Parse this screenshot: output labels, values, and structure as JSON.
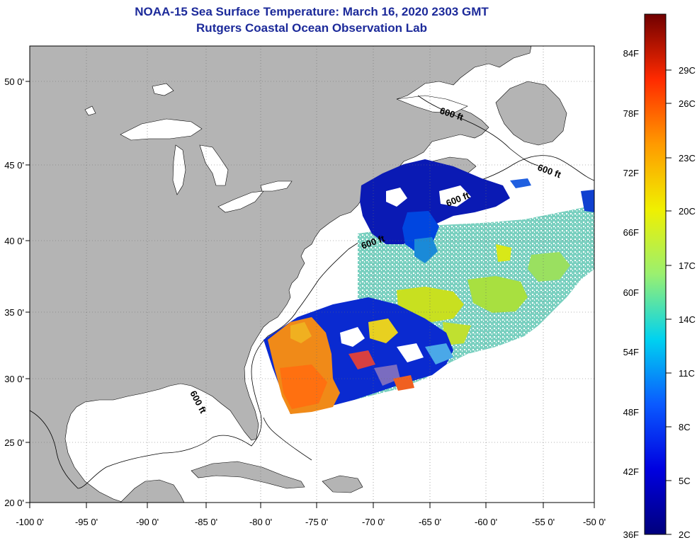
{
  "title": {
    "line1": "NOAA-15 Sea Surface Temperature:  March 16, 2020 2303 GMT",
    "line2": "Rutgers Coastal Ocean Observation Lab"
  },
  "map": {
    "lon_labels": [
      "-100 0'",
      "-95 0'",
      "-90 0'",
      "-85 0'",
      "-80 0'",
      "-75 0'",
      "-70 0'",
      "-65 0'",
      "-60 0'",
      "-55 0'",
      "-50 0'"
    ],
    "lat_labels": [
      "50 0'",
      "45 0'",
      "40 0'",
      "35 0'",
      "30 0'",
      "25 0'",
      "20 0'"
    ],
    "depth_labels": [
      "600 ft",
      "600 ft",
      "600 ft",
      "600 ft",
      "600 ft"
    ],
    "colors": {
      "land": "#b4b4b4",
      "ocean": "#ffffff",
      "grid": "#6a6a6a"
    }
  },
  "colorbar": {
    "f_labels": [
      "84F",
      "78F",
      "72F",
      "66F",
      "60F",
      "54F",
      "48F",
      "42F",
      "36F"
    ],
    "c_labels": [
      "29C",
      "26C",
      "23C",
      "20C",
      "17C",
      "14C",
      "11C",
      "8C",
      "5C",
      "2C"
    ],
    "stops": [
      "#00007c",
      "#0000e0",
      "#0a5aff",
      "#00d2f0",
      "#9af070",
      "#f0f000",
      "#ff9a00",
      "#ff2a00",
      "#700000"
    ]
  }
}
